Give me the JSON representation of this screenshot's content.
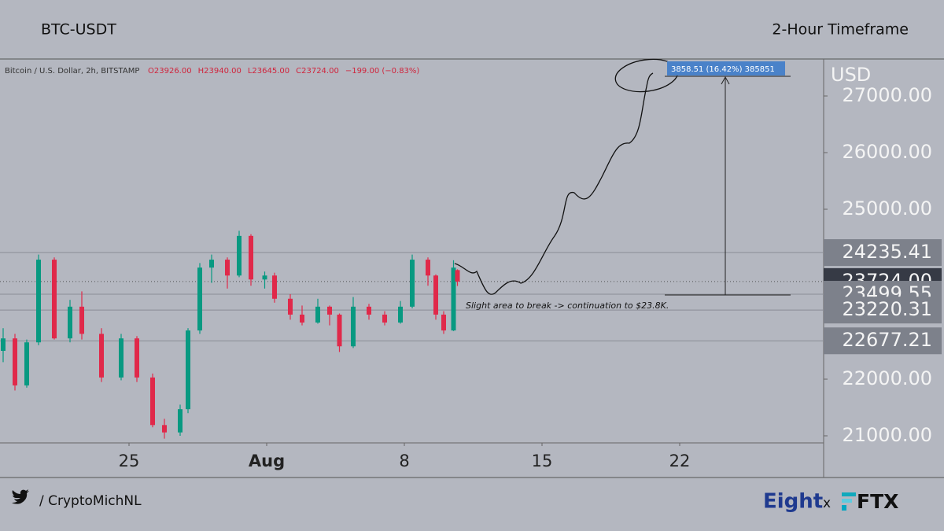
{
  "chart_data": {
    "type": "candlestick",
    "title": "BTC-USDT",
    "subtitle": "2-Hour Timeframe",
    "symbol": "Bitcoin / U.S. Dollar, 2h, BITSTAMP",
    "ohlc_labels": [
      "O23926.00",
      "H23940.00",
      "L23645.00",
      "C23724.00",
      "−199.00 (−0.83%)"
    ],
    "y_axis_label": "USD",
    "measure_label": "3858.51 (16.42%) 385851",
    "annotation": "Slight area to break -> continuation to $23.8K.",
    "up_color": "#089981",
    "down_color": "#e0294a",
    "xlim": [
      18.44,
      60.32
    ],
    "ylim": [
      20875,
      27653
    ],
    "xticks": [
      25,
      {
        "value": 32,
        "label": "Aug"
      },
      {
        "value": 39,
        "label": "8"
      },
      {
        "value": 46,
        "label": "15"
      },
      {
        "value": 53,
        "label": "22"
      }
    ],
    "yticks": [
      {
        "value": 21000,
        "label": "21000.00"
      },
      {
        "value": 22000,
        "label": "22000.00"
      },
      {
        "value": 25000,
        "label": "25000.00"
      },
      {
        "value": 26000,
        "label": "26000.00"
      },
      {
        "value": 27000,
        "label": "27000.00"
      }
    ],
    "price_levels": [
      24235.41,
      {
        "value": 23724,
        "label": "23724.00"
      },
      23499.55,
      23220.31,
      22677.21
    ],
    "x": [
      18.6,
      19.2,
      19.8,
      20.4,
      21.2,
      22.0,
      22.6,
      23.6,
      24.6,
      25.4,
      26.2,
      26.8,
      27.6,
      28.0,
      28.6,
      29.2,
      30.0,
      30.6,
      31.2,
      31.9,
      32.4,
      33.2,
      33.8,
      34.6,
      35.2,
      35.7,
      36.4,
      37.2,
      38.0,
      38.8,
      39.4,
      40.2,
      40.6,
      41.0,
      41.5,
      41.7
    ],
    "open": [
      22500,
      22720,
      21890,
      22650,
      24110,
      22720,
      23280,
      22800,
      22030,
      22720,
      22030,
      21190,
      21060,
      21470,
      22860,
      23970,
      24110,
      23830,
      24530,
      23760,
      23830,
      23420,
      23140,
      23000,
      23280,
      23140,
      22580,
      23280,
      23140,
      23000,
      23280,
      24110,
      23830,
      23140,
      22860,
      23926
    ],
    "high": [
      22900,
      22800,
      22700,
      24200,
      24150,
      23400,
      23550,
      22900,
      22800,
      22760,
      22100,
      21300,
      21550,
      22900,
      24050,
      24200,
      24150,
      24620,
      24560,
      23900,
      23880,
      23500,
      23300,
      23420,
      23300,
      23160,
      23450,
      23330,
      23200,
      23380,
      24200,
      24150,
      23850,
      23200,
      24100,
      23940
    ],
    "low": [
      22300,
      21800,
      21850,
      22600,
      22700,
      22650,
      22700,
      21950,
      21980,
      21950,
      21150,
      20950,
      21000,
      21400,
      22800,
      23700,
      23600,
      23800,
      23650,
      23600,
      23350,
      23050,
      22950,
      22980,
      22950,
      22480,
      22550,
      23050,
      22950,
      22980,
      23250,
      23650,
      23050,
      22800,
      22850,
      23645
    ],
    "close": [
      22720,
      21890,
      22650,
      24110,
      22720,
      23280,
      22800,
      22030,
      22720,
      22030,
      21190,
      21060,
      21470,
      22860,
      23970,
      24110,
      23830,
      24530,
      23760,
      23830,
      23420,
      23140,
      23000,
      23280,
      23140,
      22580,
      23280,
      23140,
      23000,
      23280,
      24110,
      23830,
      23140,
      22860,
      23970,
      23724
    ],
    "footer_handle": "/ CryptoMichNL",
    "brand": "Eight",
    "brand_separator": "x",
    "partner": "FTX"
  }
}
